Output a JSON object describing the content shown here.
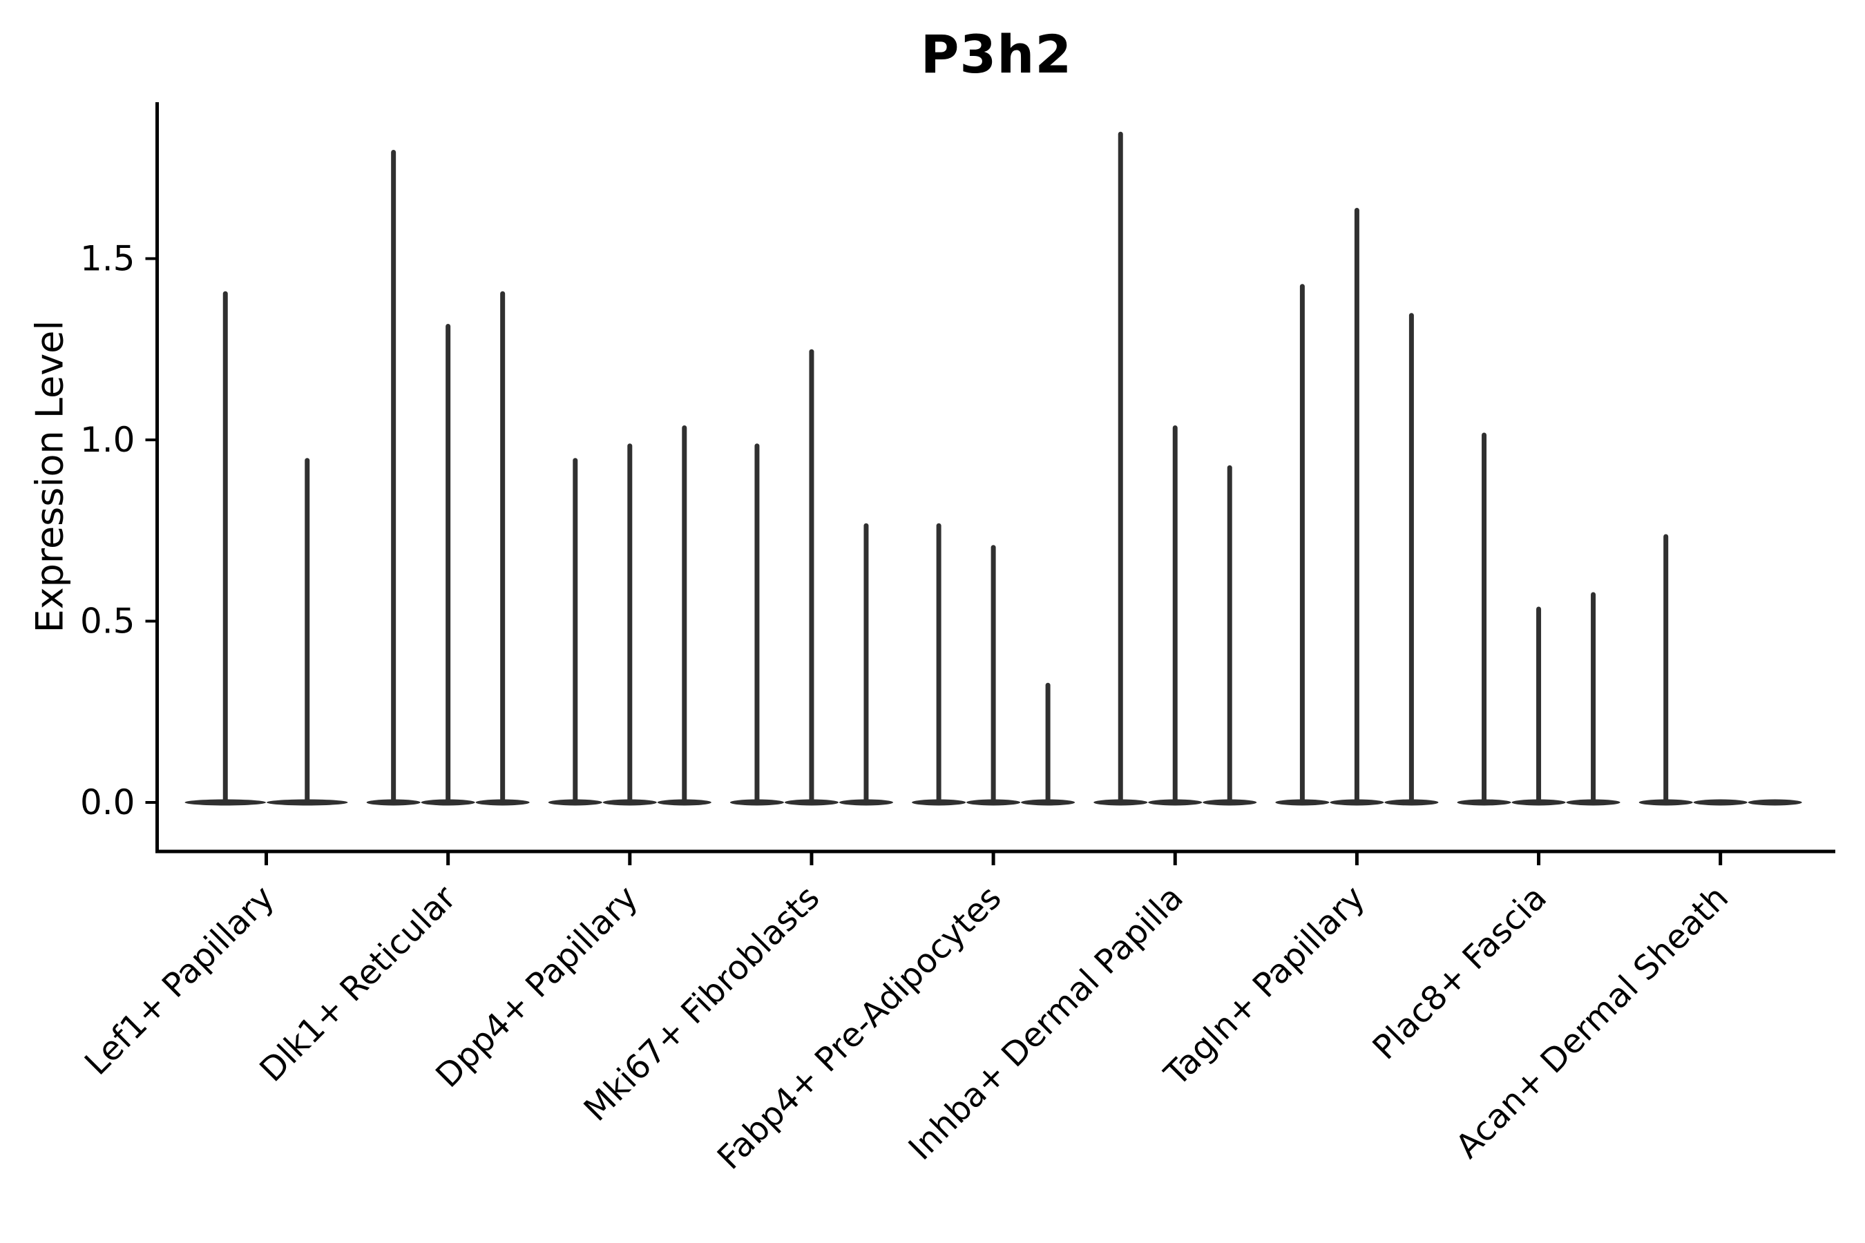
{
  "chart_data": {
    "type": "violin",
    "title": "P3h2",
    "ylabel": "Expression Level",
    "xlabel": "",
    "yticks": [
      0.0,
      0.5,
      1.0,
      1.5
    ],
    "ylim": [
      -0.13,
      1.93
    ],
    "grid": false,
    "legend": false,
    "categories": [
      "Lef1+ Papillary",
      "Dlk1+ Reticular",
      "Dpp4+ Papillary",
      "Mki67+ Fibroblasts",
      "Fabp4+ Pre-Adipocytes",
      "Inhba+ Dermal Papilla",
      "Tagln+ Papillary",
      "Plac8+ Fascia",
      "Acan+ Dermal Sheath"
    ],
    "groups": [
      {
        "label": "Lef1+ Papillary",
        "violin_max_values": [
          1.41,
          0.95
        ]
      },
      {
        "label": "Dlk1+ Reticular",
        "violin_max_values": [
          1.8,
          1.32,
          1.41
        ]
      },
      {
        "label": "Dpp4+ Papillary",
        "violin_max_values": [
          0.95,
          0.99,
          1.04
        ]
      },
      {
        "label": "Mki67+ Fibroblasts",
        "violin_max_values": [
          0.99,
          1.25,
          0.77
        ]
      },
      {
        "label": "Fabp4+ Pre-Adipocytes",
        "violin_max_values": [
          0.77,
          0.71,
          0.33
        ]
      },
      {
        "label": "Inhba+ Dermal Papilla",
        "violin_max_values": [
          1.85,
          1.04,
          0.93
        ]
      },
      {
        "label": "Tagln+ Papillary",
        "violin_max_values": [
          1.43,
          1.64,
          1.35
        ]
      },
      {
        "label": "Plac8+ Fascia",
        "violin_max_values": [
          1.02,
          0.54,
          0.58
        ]
      },
      {
        "label": "Acan+ Dermal Sheath",
        "violin_max_values": [
          0.74,
          0.0,
          0.0
        ]
      }
    ],
    "style": {
      "violin_color": "#303030",
      "axis_color": "#000000",
      "background": "#ffffff"
    }
  }
}
